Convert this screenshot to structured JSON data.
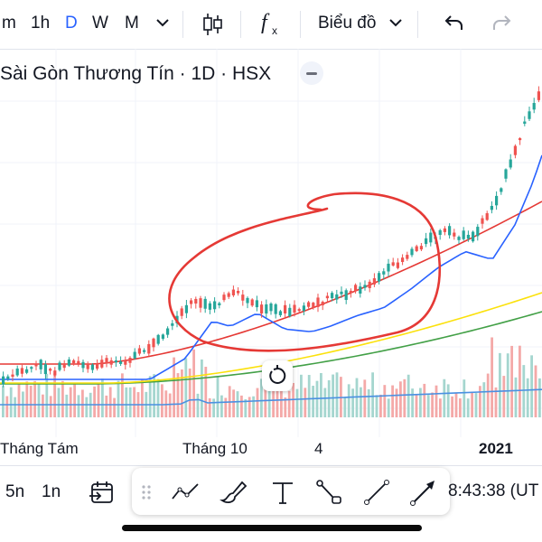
{
  "toolbar": {
    "intervals": [
      "m",
      "1h",
      "D",
      "W",
      "M"
    ],
    "active_interval": "D",
    "chart_type_label": "Biểu đồ",
    "icons": [
      "chevron-down-icon",
      "candles-icon",
      "indicators-fx-icon",
      "undo-icon",
      "redo-icon"
    ]
  },
  "legend": {
    "title": "Sài Gòn Thương Tín · 1D · HSX"
  },
  "axis": {
    "x_labels": [
      "Tháng Tám",
      "Tháng 10",
      "4",
      "2021"
    ]
  },
  "bottom_bar": {
    "ranges": [
      "5n",
      "1n"
    ],
    "clock": "8:43:38 (UT",
    "drawing_tools": [
      "drag-handle-icon",
      "trend-line-icon",
      "brush-icon",
      "text-tool-icon",
      "path-icon",
      "line-segment-icon",
      "arrow-icon"
    ]
  },
  "colors": {
    "up": "#26a69a",
    "down": "#ef5350",
    "ma_blue": "#2962ff",
    "ma_red": "#e53935",
    "ma_yellow": "#fbe10c",
    "ma_green": "#43a047",
    "annotation": "#e53935",
    "accent": "#2962ff"
  },
  "chart_data": {
    "type": "candlestick",
    "series": [
      {
        "name": "",
        "kind": "price",
        "style": "candles",
        "trend": [
          7.6,
          7.9,
          8.2,
          8.0,
          8.3,
          8.2,
          8.4,
          9.2,
          10.6,
          10.4,
          10.9,
          10.3,
          10.2,
          10.4,
          10.8,
          11.1,
          11.8,
          12.6,
          13.2,
          12.9,
          14.2,
          15.8,
          17.3,
          18.5
        ]
      },
      {
        "name": "",
        "kind": "moving-average",
        "color": "blue"
      },
      {
        "name": "",
        "kind": "moving-average",
        "color": "red"
      },
      {
        "name": "",
        "kind": "moving-average",
        "color": "yellow"
      },
      {
        "name": "",
        "kind": "moving-average",
        "color": "green"
      },
      {
        "name": "",
        "kind": "volume",
        "style": "histogram"
      }
    ],
    "x_tick_labels": [
      "Tháng Tám",
      "Tháng 10",
      "4",
      "2021"
    ],
    "annotation": "hand-drawn ellipse around consolidation zone",
    "grid": true
  }
}
